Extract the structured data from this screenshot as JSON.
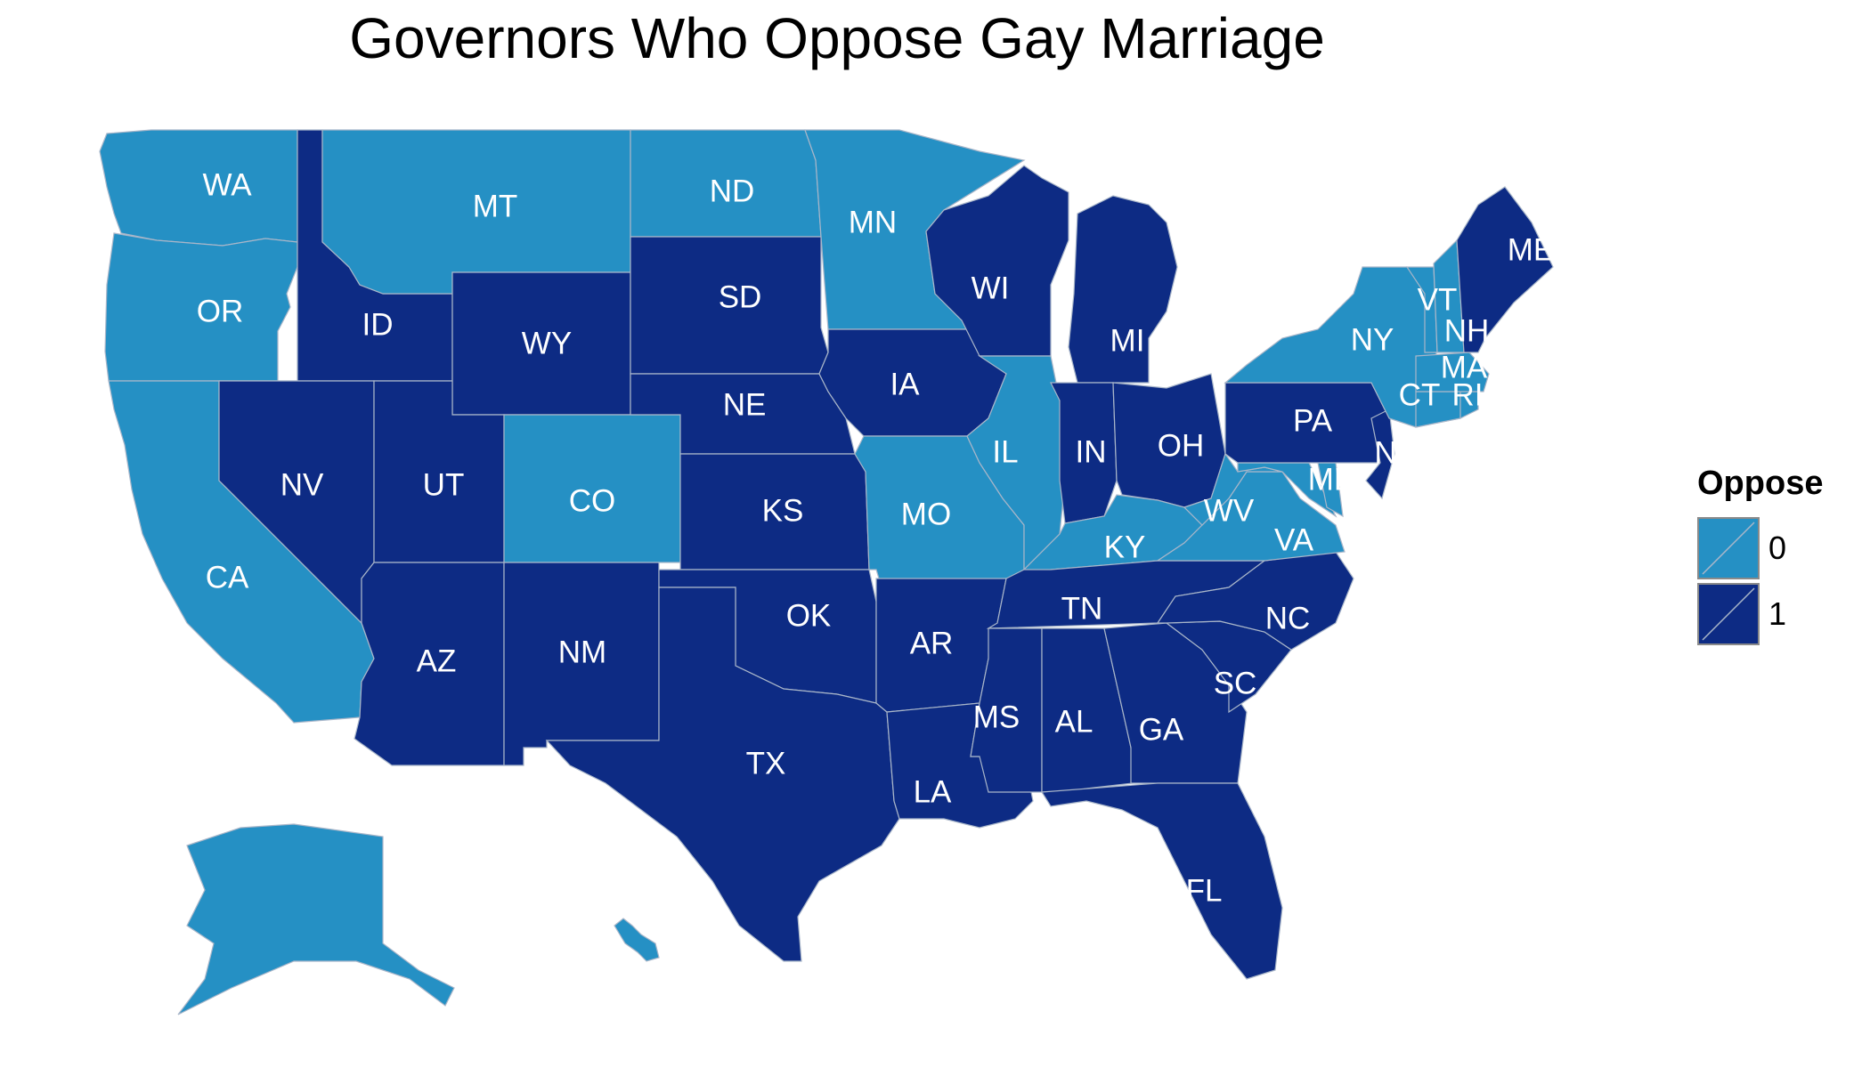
{
  "title": "Governors Who Oppose Gay Marriage",
  "legend": {
    "title": "Oppose",
    "items": [
      {
        "label": "0",
        "color": "#2590c4"
      },
      {
        "label": "1",
        "color": "#0d2b84"
      }
    ]
  },
  "map_data": {
    "type": "choropleth",
    "variable": "Oppose",
    "colors": {
      "0": "#2590c4",
      "1": "#0d2b84"
    },
    "states": [
      {
        "abbr": "WA",
        "value": 0
      },
      {
        "abbr": "OR",
        "value": 0
      },
      {
        "abbr": "CA",
        "value": 0
      },
      {
        "abbr": "ID",
        "value": 1
      },
      {
        "abbr": "NV",
        "value": 1
      },
      {
        "abbr": "MT",
        "value": 0
      },
      {
        "abbr": "WY",
        "value": 1
      },
      {
        "abbr": "UT",
        "value": 1
      },
      {
        "abbr": "AZ",
        "value": 1
      },
      {
        "abbr": "CO",
        "value": 0
      },
      {
        "abbr": "NM",
        "value": 1
      },
      {
        "abbr": "ND",
        "value": 0
      },
      {
        "abbr": "SD",
        "value": 1
      },
      {
        "abbr": "NE",
        "value": 1
      },
      {
        "abbr": "KS",
        "value": 1
      },
      {
        "abbr": "OK",
        "value": 1
      },
      {
        "abbr": "TX",
        "value": 1
      },
      {
        "abbr": "MN",
        "value": 0
      },
      {
        "abbr": "IA",
        "value": 1
      },
      {
        "abbr": "MO",
        "value": 0
      },
      {
        "abbr": "AR",
        "value": 1
      },
      {
        "abbr": "LA",
        "value": 1
      },
      {
        "abbr": "WI",
        "value": 1
      },
      {
        "abbr": "IL",
        "value": 0
      },
      {
        "abbr": "MI",
        "value": 1
      },
      {
        "abbr": "IN",
        "value": 1
      },
      {
        "abbr": "OH",
        "value": 1
      },
      {
        "abbr": "KY",
        "value": 0
      },
      {
        "abbr": "TN",
        "value": 1
      },
      {
        "abbr": "MS",
        "value": 1
      },
      {
        "abbr": "AL",
        "value": 1
      },
      {
        "abbr": "GA",
        "value": 1
      },
      {
        "abbr": "FL",
        "value": 1
      },
      {
        "abbr": "SC",
        "value": 1
      },
      {
        "abbr": "NC",
        "value": 1
      },
      {
        "abbr": "VA",
        "value": 0
      },
      {
        "abbr": "WV",
        "value": 0
      },
      {
        "abbr": "MD",
        "value": 0
      },
      {
        "abbr": "D",
        "value": 0
      },
      {
        "abbr": "PA",
        "value": 1
      },
      {
        "abbr": "N",
        "value": 1
      },
      {
        "abbr": "NY",
        "value": 0
      },
      {
        "abbr": "CT",
        "value": 0
      },
      {
        "abbr": "RI",
        "value": 0
      },
      {
        "abbr": "MA",
        "value": 0
      },
      {
        "abbr": "VT",
        "value": 0
      },
      {
        "abbr": "NH",
        "value": 0
      },
      {
        "abbr": "ME",
        "value": 1
      },
      {
        "abbr": "AK",
        "value": 0
      },
      {
        "abbr": "HI",
        "value": 0
      }
    ]
  }
}
